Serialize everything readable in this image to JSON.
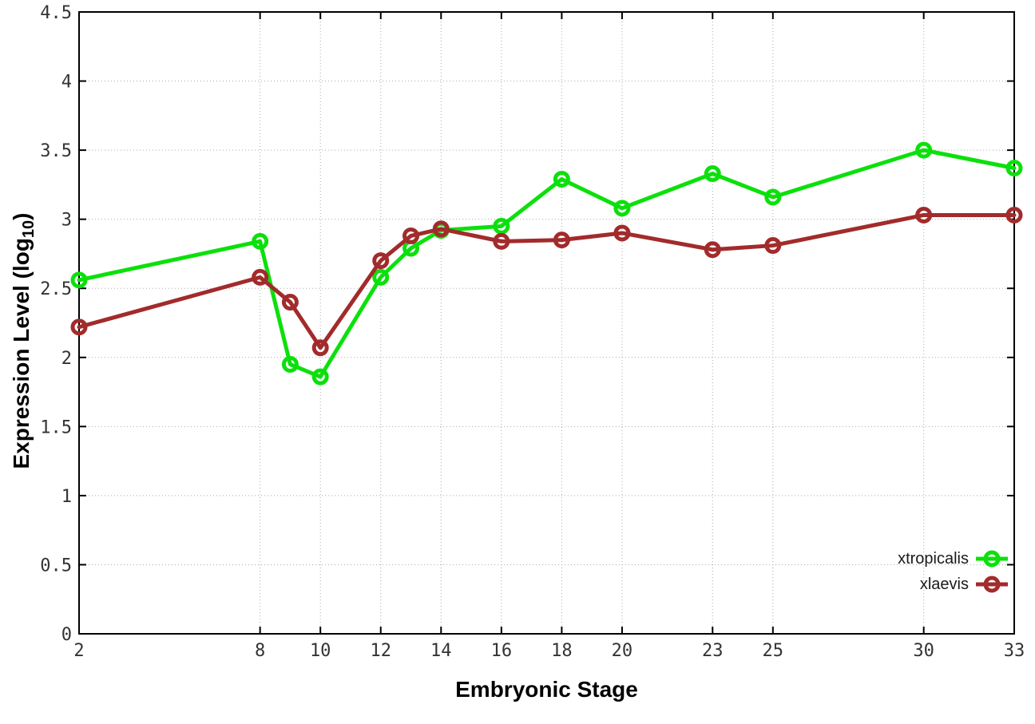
{
  "chart_data": {
    "type": "line",
    "title": "",
    "xlabel": "Embryonic Stage",
    "ylabel": "Expression Level (log10)",
    "ylabel_parts": {
      "main": "Expression Level (log",
      "sub": "10",
      "end": ")"
    },
    "xlim": [
      2,
      33
    ],
    "ylim": [
      0,
      4.5
    ],
    "x_ticks": [
      2,
      8,
      10,
      12,
      14,
      16,
      18,
      20,
      23,
      25,
      30,
      33
    ],
    "y_ticks": [
      "0",
      "0.5",
      "1",
      "1.5",
      "2",
      "2.5",
      "3",
      "3.5",
      "4",
      "4.5"
    ],
    "grid": true,
    "legend_position": "bottom-right",
    "marker": "open-circle",
    "x": [
      2,
      8,
      9,
      10,
      12,
      13,
      14,
      16,
      18,
      20,
      23,
      25,
      30,
      33
    ],
    "series": [
      {
        "name": "xtropicalis",
        "color": "#0ce00c",
        "values": [
          2.56,
          2.84,
          1.95,
          1.86,
          2.58,
          2.79,
          2.92,
          2.95,
          3.29,
          3.08,
          3.33,
          3.16,
          3.5,
          3.37
        ]
      },
      {
        "name": "xlaevis",
        "color": "#a22b2b",
        "values": [
          2.22,
          2.58,
          2.4,
          2.07,
          2.7,
          2.88,
          2.93,
          2.84,
          2.85,
          2.9,
          2.78,
          2.81,
          3.03,
          3.03
        ]
      }
    ]
  },
  "colors": {
    "background": "#ffffff",
    "border": "#000000",
    "grid": "#ababab",
    "tick_text": "#333333",
    "axis_title": "#000000"
  }
}
